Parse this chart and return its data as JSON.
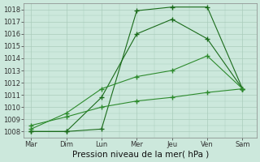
{
  "xlabel": "Pression niveau de la mer( hPa )",
  "x_labels": [
    "Mar",
    "Dim",
    "Lun",
    "Mer",
    "Jeu",
    "Ven",
    "Sam"
  ],
  "x_values": [
    0,
    1,
    2,
    3,
    4,
    5,
    6
  ],
  "ylim": [
    1007.5,
    1018.5
  ],
  "yticks": [
    1008,
    1009,
    1010,
    1011,
    1012,
    1013,
    1014,
    1015,
    1016,
    1017,
    1018
  ],
  "line1": [
    1008.0,
    1008.0,
    1008.2,
    1017.9,
    1018.2,
    1018.2,
    1011.5
  ],
  "line2": [
    1008.0,
    1008.0,
    1010.8,
    1016.0,
    1017.2,
    1015.6,
    1011.5
  ],
  "line3": [
    1008.2,
    1009.5,
    1011.5,
    1012.5,
    1013.0,
    1014.2,
    1011.5
  ],
  "line4": [
    1008.5,
    1009.2,
    1010.0,
    1010.5,
    1010.8,
    1011.2,
    1011.5
  ],
  "line_color": "#1a6b1a",
  "line_color2": "#2d8b2d",
  "bg_color": "#cce8dc",
  "grid_color": "#aaccbb",
  "tick_fontsize": 6,
  "label_fontsize": 7.5
}
